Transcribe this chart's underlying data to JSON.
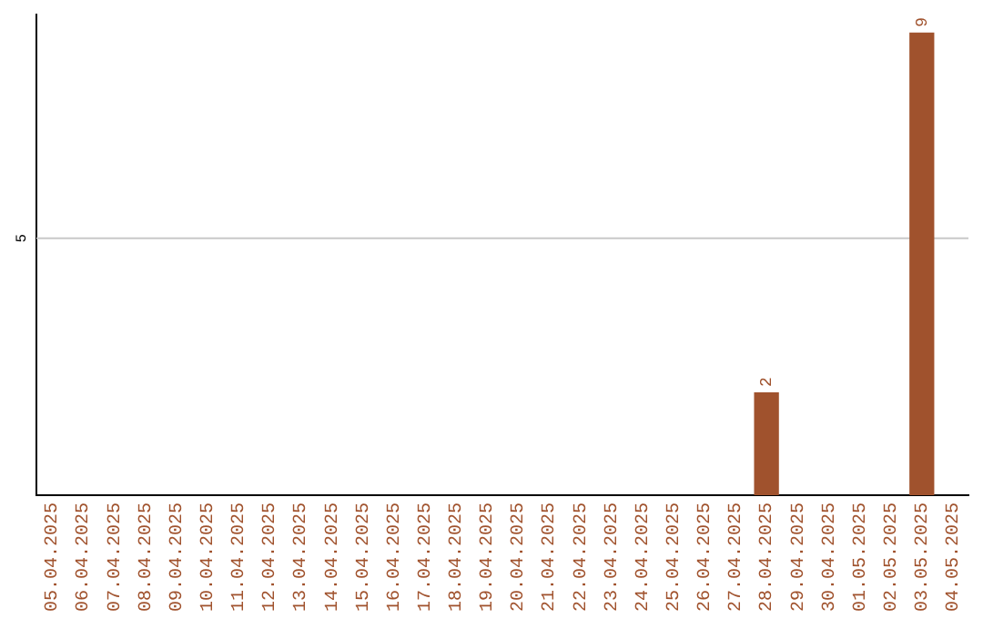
{
  "chart_data": {
    "type": "bar",
    "categories": [
      "05.04.2025",
      "06.04.2025",
      "07.04.2025",
      "08.04.2025",
      "09.04.2025",
      "10.04.2025",
      "11.04.2025",
      "12.04.2025",
      "13.04.2025",
      "14.04.2025",
      "15.04.2025",
      "16.04.2025",
      "17.04.2025",
      "18.04.2025",
      "19.04.2025",
      "20.04.2025",
      "21.04.2025",
      "22.04.2025",
      "23.04.2025",
      "24.04.2025",
      "25.04.2025",
      "26.04.2025",
      "27.04.2025",
      "28.04.2025",
      "29.04.2025",
      "30.04.2025",
      "01.05.2025",
      "02.05.2025",
      "03.05.2025",
      "04.05.2025"
    ],
    "values": [
      null,
      null,
      null,
      null,
      null,
      null,
      null,
      null,
      null,
      null,
      null,
      null,
      null,
      null,
      null,
      null,
      null,
      null,
      null,
      null,
      null,
      null,
      null,
      2,
      null,
      null,
      null,
      null,
      9,
      null
    ],
    "data_labels": true,
    "color": "#a0522d",
    "ylim": [
      0,
      9.35
    ],
    "ref_lines": [
      {
        "axis": "y",
        "value": 5,
        "label": "5",
        "color": "#c8c8c8"
      }
    ],
    "legend": false
  }
}
